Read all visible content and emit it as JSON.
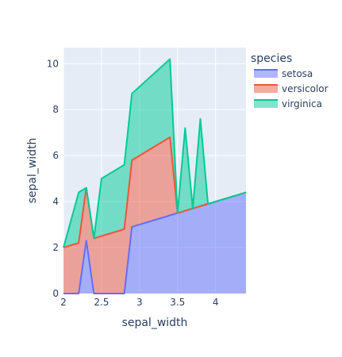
{
  "chart_data": {
    "type": "area",
    "stacked": true,
    "xlabel": "sepal_width",
    "ylabel": "sepal_width",
    "xlim": [
      2.0,
      4.4
    ],
    "ylim": [
      0,
      10.7
    ],
    "x_ticks": [
      2,
      2.5,
      3,
      3.5,
      4
    ],
    "x_tick_labels": [
      "2",
      "2.5",
      "3",
      "3.5",
      "4"
    ],
    "y_ticks": [
      0,
      2,
      4,
      6,
      8,
      10
    ],
    "y_tick_labels": [
      "0",
      "2",
      "4",
      "6",
      "8",
      "10"
    ],
    "grid": true,
    "legend_title": "species",
    "legend_position": "right",
    "x": [
      2.0,
      2.2,
      2.3,
      2.4,
      2.5,
      2.8,
      2.9,
      3.4,
      3.5,
      3.6,
      3.7,
      3.8,
      3.9,
      4.4
    ],
    "series": [
      {
        "name": "setosa",
        "color": "#636efa",
        "values": [
          0,
          0,
          2.3,
          0,
          0,
          0,
          2.9,
          3.4,
          3.5,
          3.6,
          3.7,
          3.8,
          3.9,
          4.4
        ]
      },
      {
        "name": "versicolor",
        "color": "#ef553b",
        "values": [
          2.0,
          2.2,
          2.3,
          2.4,
          2.5,
          2.8,
          2.9,
          3.4,
          0,
          0,
          0,
          0,
          0,
          0
        ]
      },
      {
        "name": "virginica",
        "color": "#00cc96",
        "values": [
          0,
          2.2,
          0,
          0,
          2.5,
          2.8,
          2.9,
          3.4,
          0,
          3.6,
          0,
          3.8,
          0,
          0
        ]
      }
    ]
  }
}
